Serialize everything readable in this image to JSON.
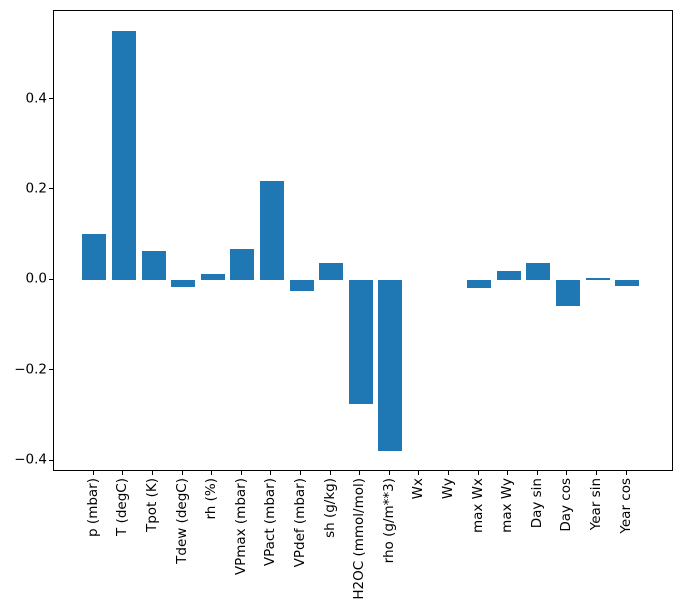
{
  "chart_data": {
    "type": "bar",
    "title": "",
    "xlabel": "",
    "ylabel": "",
    "categories": [
      "p (mbar)",
      "T (degC)",
      "Tpot (K)",
      "Tdew (degC)",
      "rh (%)",
      "VPmax (mbar)",
      "VPact (mbar)",
      "VPdef (mbar)",
      "sh (g/kg)",
      "H2OC (mmol/mol)",
      "rho (g/m**3)",
      "Wx",
      "Wy",
      "max Wx",
      "max Wy",
      "Day sin",
      "Day cos",
      "Year sin",
      "Year cos"
    ],
    "values": [
      0.102,
      0.551,
      0.066,
      -0.014,
      0.014,
      0.069,
      0.22,
      -0.023,
      0.038,
      -0.273,
      -0.377,
      0.0,
      0.0,
      -0.017,
      0.021,
      0.038,
      -0.057,
      0.005,
      -0.013
    ],
    "bar_color": "#1f77b4",
    "axis_color": "#000000",
    "background_color": "#ffffff",
    "ylim": [
      -0.424,
      0.596
    ],
    "ytick_values": [
      0.4,
      0.2,
      0.0,
      -0.2,
      -0.4
    ],
    "ytick_labels": [
      "0.4",
      "0.2",
      "0.0",
      "−0.2",
      "−0.4"
    ],
    "x_tick_label_rotation_deg": 90,
    "grid": false,
    "legend": null
  }
}
